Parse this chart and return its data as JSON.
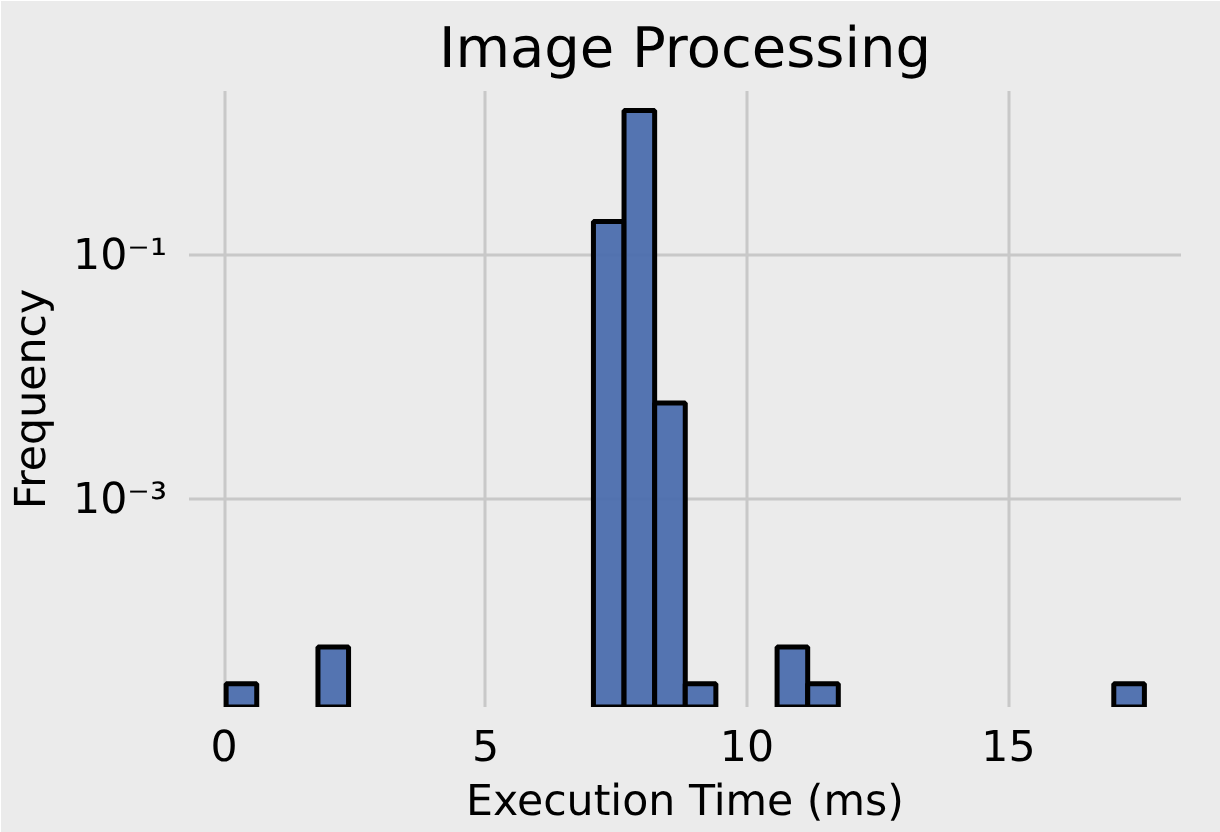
{
  "chart_data": {
    "type": "histogram",
    "title": "Image Processing",
    "xlabel": "Execution Time (ms)",
    "ylabel": "Frequency",
    "bins": [
      0.04,
      0.6253,
      1.2107,
      1.796,
      2.3813,
      2.9667,
      3.552,
      4.1373,
      4.7227,
      5.308,
      5.8933,
      6.4787,
      7.064,
      7.6493,
      8.2347,
      8.82,
      9.4053,
      9.9907,
      10.576,
      11.1613,
      11.7467,
      12.332,
      12.9173,
      13.5027,
      14.088,
      14.6733,
      15.2587,
      15.844,
      16.4293,
      17.0147,
      17.6
    ],
    "values": [
      3.1e-05,
      null,
      null,
      6.2e-05,
      null,
      null,
      null,
      null,
      null,
      null,
      null,
      null,
      0.19,
      1.54,
      0.0062,
      3.1e-05,
      null,
      null,
      6.2e-05,
      3.1e-05,
      null,
      null,
      null,
      null,
      null,
      null,
      null,
      null,
      null,
      3.1e-05
    ],
    "color": "#4c6eae",
    "log": "y",
    "xlim": [
      -0.67,
      18.3
    ],
    "ylim": [
      2e-05,
      2.23
    ],
    "xticks": [
      0,
      5,
      10,
      15
    ],
    "yticks": [
      {
        "value": 0.1,
        "label": "10⁻¹"
      },
      {
        "value": 0.001,
        "label": "10⁻³"
      }
    ],
    "grid": true
  }
}
